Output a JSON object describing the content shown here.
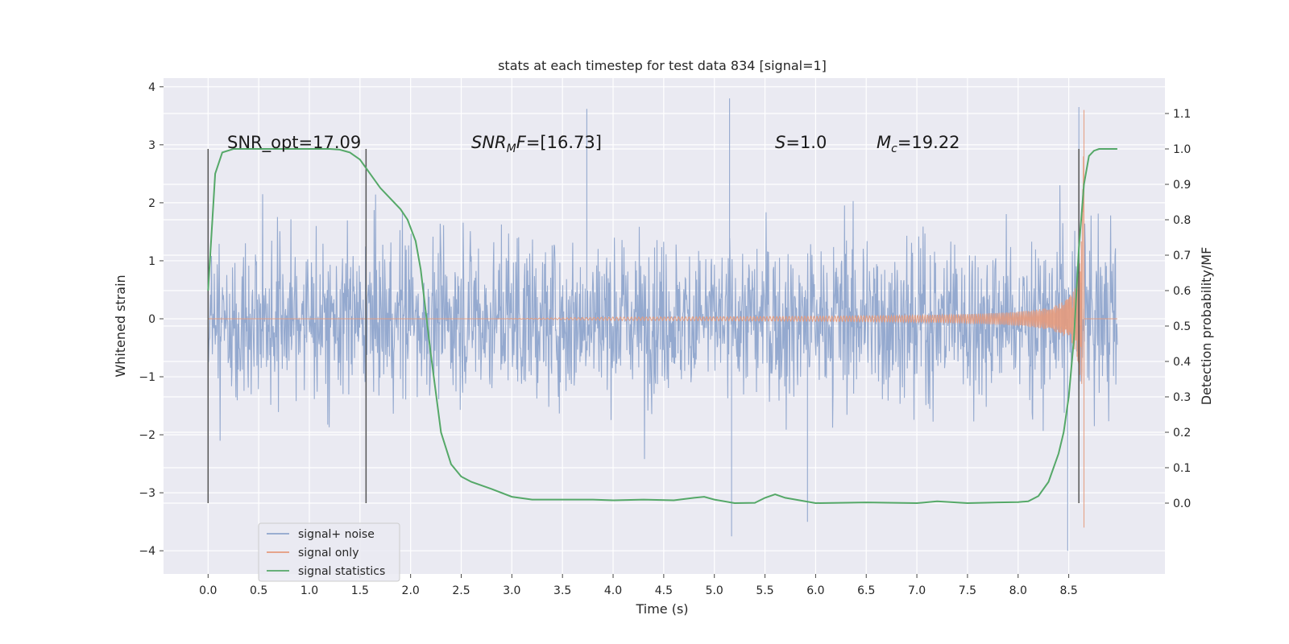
{
  "chart_data": {
    "type": "line",
    "title": "stats at each timestep for test data 834 [signal=1]",
    "xlabel": "Time (s)",
    "ylabel": "Whitened strain",
    "y2label": "Detection probability/MF",
    "xlim": [
      -0.44,
      9.45
    ],
    "ylim": [
      -4.4,
      4.15
    ],
    "y2lim": [
      -0.2,
      1.2
    ],
    "x_ticks": [
      0.0,
      0.5,
      1.0,
      1.5,
      2.0,
      2.5,
      3.0,
      3.5,
      4.0,
      4.5,
      5.0,
      5.5,
      6.0,
      6.5,
      7.0,
      7.5,
      8.0,
      8.5
    ],
    "x_tick_labels": [
      "0.0",
      "0.5",
      "1.0",
      "1.5",
      "2.0",
      "2.5",
      "3.0",
      "3.5",
      "4.0",
      "4.5",
      "5.0",
      "5.5",
      "6.0",
      "6.5",
      "7.0",
      "7.5",
      "8.0",
      "8.5"
    ],
    "y_ticks": [
      4,
      3,
      2,
      1,
      0,
      -1,
      -2,
      -3,
      -4
    ],
    "y_tick_labels": [
      "4",
      "3",
      "2",
      "1",
      "0",
      "−1",
      "−2",
      "−3",
      "−4"
    ],
    "y2_ticks": [
      1.1,
      1.0,
      0.9,
      0.8,
      0.7,
      0.6,
      0.5,
      0.4,
      0.3,
      0.2,
      0.1,
      0.0
    ],
    "y2_tick_labels": [
      "1.1",
      "1.0",
      "0.9",
      "0.8",
      "0.7",
      "0.6",
      "0.5",
      "0.4",
      "0.3",
      "0.2",
      "0.1",
      "0.0"
    ],
    "annotations": {
      "snr_opt": "SNR_opt=17.09",
      "snr_mf": "=[16.73]",
      "snr_mf_base": "SNR",
      "snr_mf_sub": "M",
      "snr_mf_tail": "F",
      "s_label": "S",
      "s_value": "=1.0",
      "mc_label": "M",
      "mc_sub": "c",
      "mc_value": "=19.22"
    },
    "vertical_markers_x": [
      0.0,
      1.56,
      8.6
    ],
    "series": [
      {
        "name": "signal+ noise",
        "color": "#8fa5cc",
        "kind": "noise",
        "x_range": [
          0.0,
          8.98
        ],
        "typical_amplitude": 1.6,
        "peaks": [
          {
            "x": 3.74,
            "y": 3.62
          },
          {
            "x": 5.15,
            "y": 3.8
          },
          {
            "x": 5.17,
            "y": -3.75
          },
          {
            "x": 5.92,
            "y": -3.5
          },
          {
            "x": 8.49,
            "y": -4.0
          },
          {
            "x": 8.6,
            "y": 3.65
          }
        ]
      },
      {
        "name": "signal only",
        "color": "#e49a7c",
        "kind": "chirp",
        "x_range": [
          0.0,
          8.98
        ],
        "merger_x": 8.65,
        "peak_max": 3.6,
        "peak_min": -3.6
      },
      {
        "name": "signal statistics",
        "color": "#55a868",
        "axis": "right",
        "x": [
          0.0,
          0.07,
          0.14,
          0.25,
          0.4,
          0.6,
          0.8,
          1.0,
          1.2,
          1.3,
          1.4,
          1.5,
          1.55,
          1.6,
          1.7,
          1.8,
          1.9,
          1.97,
          2.05,
          2.1,
          2.2,
          2.3,
          2.4,
          2.5,
          2.6,
          2.8,
          3.0,
          3.2,
          3.5,
          3.8,
          4.0,
          4.3,
          4.6,
          4.8,
          4.9,
          5.0,
          5.2,
          5.4,
          5.5,
          5.6,
          5.7,
          6.0,
          6.5,
          7.0,
          7.2,
          7.5,
          7.8,
          8.0,
          8.1,
          8.2,
          8.3,
          8.4,
          8.45,
          8.5,
          8.55,
          8.6,
          8.65,
          8.7,
          8.75,
          8.8,
          8.9,
          8.98
        ],
        "values": [
          0.6,
          0.93,
          0.99,
          1.0,
          1.0,
          1.0,
          1.0,
          1.0,
          1.0,
          0.998,
          0.99,
          0.97,
          0.95,
          0.93,
          0.89,
          0.86,
          0.83,
          0.8,
          0.74,
          0.66,
          0.42,
          0.2,
          0.11,
          0.075,
          0.06,
          0.04,
          0.018,
          0.01,
          0.01,
          0.01,
          0.008,
          0.01,
          0.008,
          0.015,
          0.018,
          0.01,
          0.0,
          0.001,
          0.015,
          0.025,
          0.015,
          0.0,
          0.002,
          0.0,
          0.005,
          0.0,
          0.002,
          0.003,
          0.005,
          0.02,
          0.06,
          0.14,
          0.2,
          0.3,
          0.46,
          0.72,
          0.9,
          0.98,
          0.995,
          1.0,
          1.0,
          1.0
        ]
      }
    ],
    "legend": {
      "position": "lower-left",
      "entries": [
        "signal+ noise",
        "signal only",
        "signal statistics"
      ]
    },
    "grid": true
  }
}
